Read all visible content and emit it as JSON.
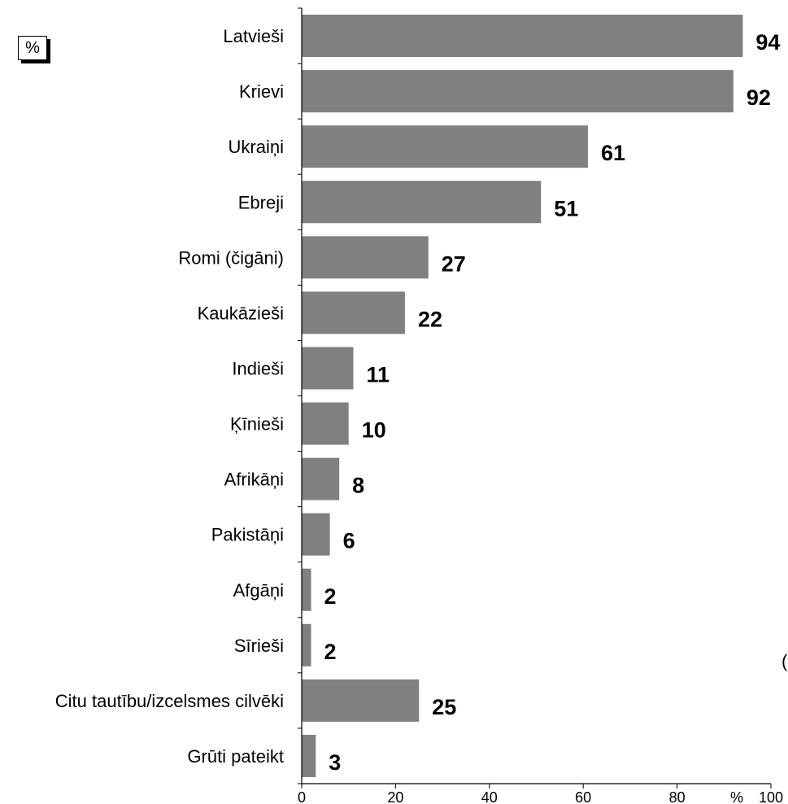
{
  "chart_data": {
    "type": "bar",
    "orientation": "horizontal",
    "categories": [
      "Latvieši",
      "Krievi",
      "Ukraiņi",
      "Ebreji",
      "Romi (čigāni)",
      "Kaukāzieši",
      "Indieši",
      "Ķīnieši",
      "Afrikāņi",
      "Pakistāņi",
      "Afgāņi",
      "Sīrieši",
      "Citu tautību/izcelsmes cilvēki",
      "Grūti pateikt"
    ],
    "values": [
      94,
      92,
      61,
      51,
      27,
      22,
      11,
      10,
      8,
      6,
      2,
      2,
      25,
      3
    ],
    "xlim": [
      0,
      100
    ],
    "xticks": [
      "0",
      "20",
      "40",
      "60",
      "80",
      "100"
    ],
    "xunit": "%",
    "unit_box": "%",
    "bar_color": "#808080",
    "grid": false,
    "cut_glyph": "("
  }
}
